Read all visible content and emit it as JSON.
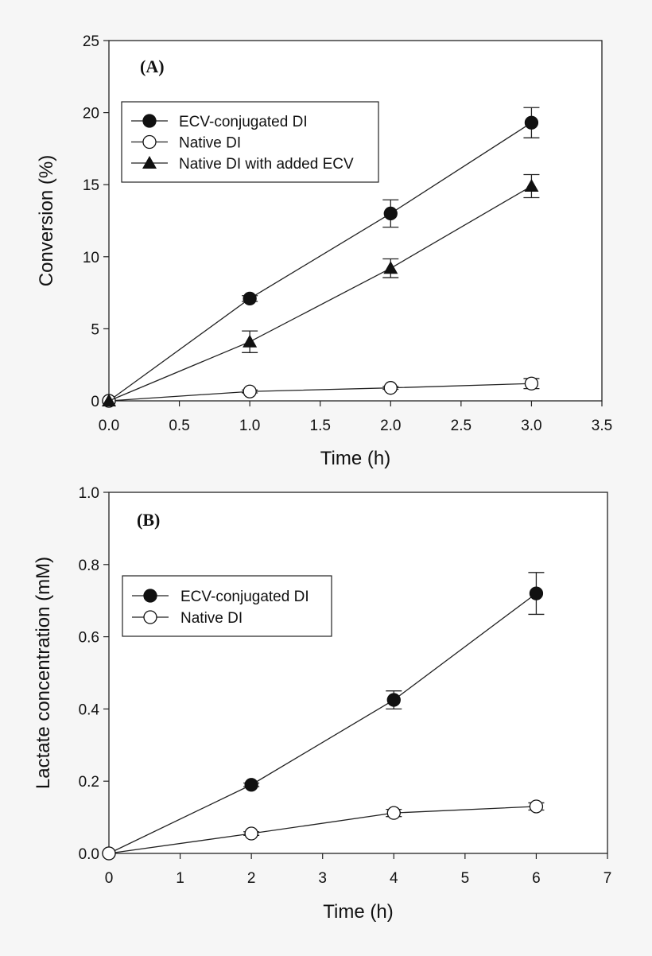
{
  "chart_data": [
    {
      "type": "line",
      "panel_label": "(A)",
      "xlabel": "Time (h)",
      "ylabel": "Conversion (%)",
      "xlim": [
        0,
        3.5
      ],
      "ylim": [
        0,
        25
      ],
      "xticks": [
        "0.0",
        "0.5",
        "1.0",
        "1.5",
        "2.0",
        "2.5",
        "3.0",
        "3.5"
      ],
      "yticks": [
        "0",
        "5",
        "10",
        "15",
        "20",
        "25"
      ],
      "grid": false,
      "legend_placement": "top-left",
      "series": [
        {
          "name": "ECV-conjugated DI",
          "marker": "filled-circle",
          "x": [
            0,
            1,
            2,
            3
          ],
          "y": [
            0,
            7.1,
            13.0,
            19.3
          ],
          "err": [
            0,
            0.2,
            0.95,
            1.05
          ]
        },
        {
          "name": "Native DI",
          "marker": "open-circle",
          "x": [
            0,
            1,
            2,
            3
          ],
          "y": [
            0,
            0.65,
            0.9,
            1.2
          ],
          "err": [
            0,
            0.1,
            0.1,
            0.35
          ]
        },
        {
          "name": "Native DI with added ECV",
          "marker": "filled-triangle",
          "x": [
            0,
            1,
            2,
            3
          ],
          "y": [
            0,
            4.1,
            9.2,
            14.9
          ],
          "err": [
            0,
            0.75,
            0.65,
            0.8
          ]
        }
      ]
    },
    {
      "type": "line",
      "panel_label": "(B)",
      "xlabel": "Time (h)",
      "ylabel": "Lactate concentration (mM)",
      "xlim": [
        0,
        7
      ],
      "ylim": [
        0,
        1.0
      ],
      "xticks": [
        "0",
        "1",
        "2",
        "3",
        "4",
        "5",
        "6",
        "7"
      ],
      "yticks": [
        "0.0",
        "0.2",
        "0.4",
        "0.6",
        "0.8",
        "1.0"
      ],
      "grid": false,
      "legend_placement": "top-left",
      "series": [
        {
          "name": "ECV-conjugated DI",
          "marker": "filled-circle",
          "x": [
            0,
            2,
            4,
            6
          ],
          "y": [
            0,
            0.19,
            0.425,
            0.72
          ],
          "err": [
            0,
            0.005,
            0.025,
            0.058
          ]
        },
        {
          "name": "Native DI",
          "marker": "open-circle",
          "x": [
            0,
            2,
            4,
            6
          ],
          "y": [
            0,
            0.055,
            0.112,
            0.13
          ],
          "err": [
            0,
            0.005,
            0.01,
            0.01
          ]
        }
      ]
    }
  ]
}
